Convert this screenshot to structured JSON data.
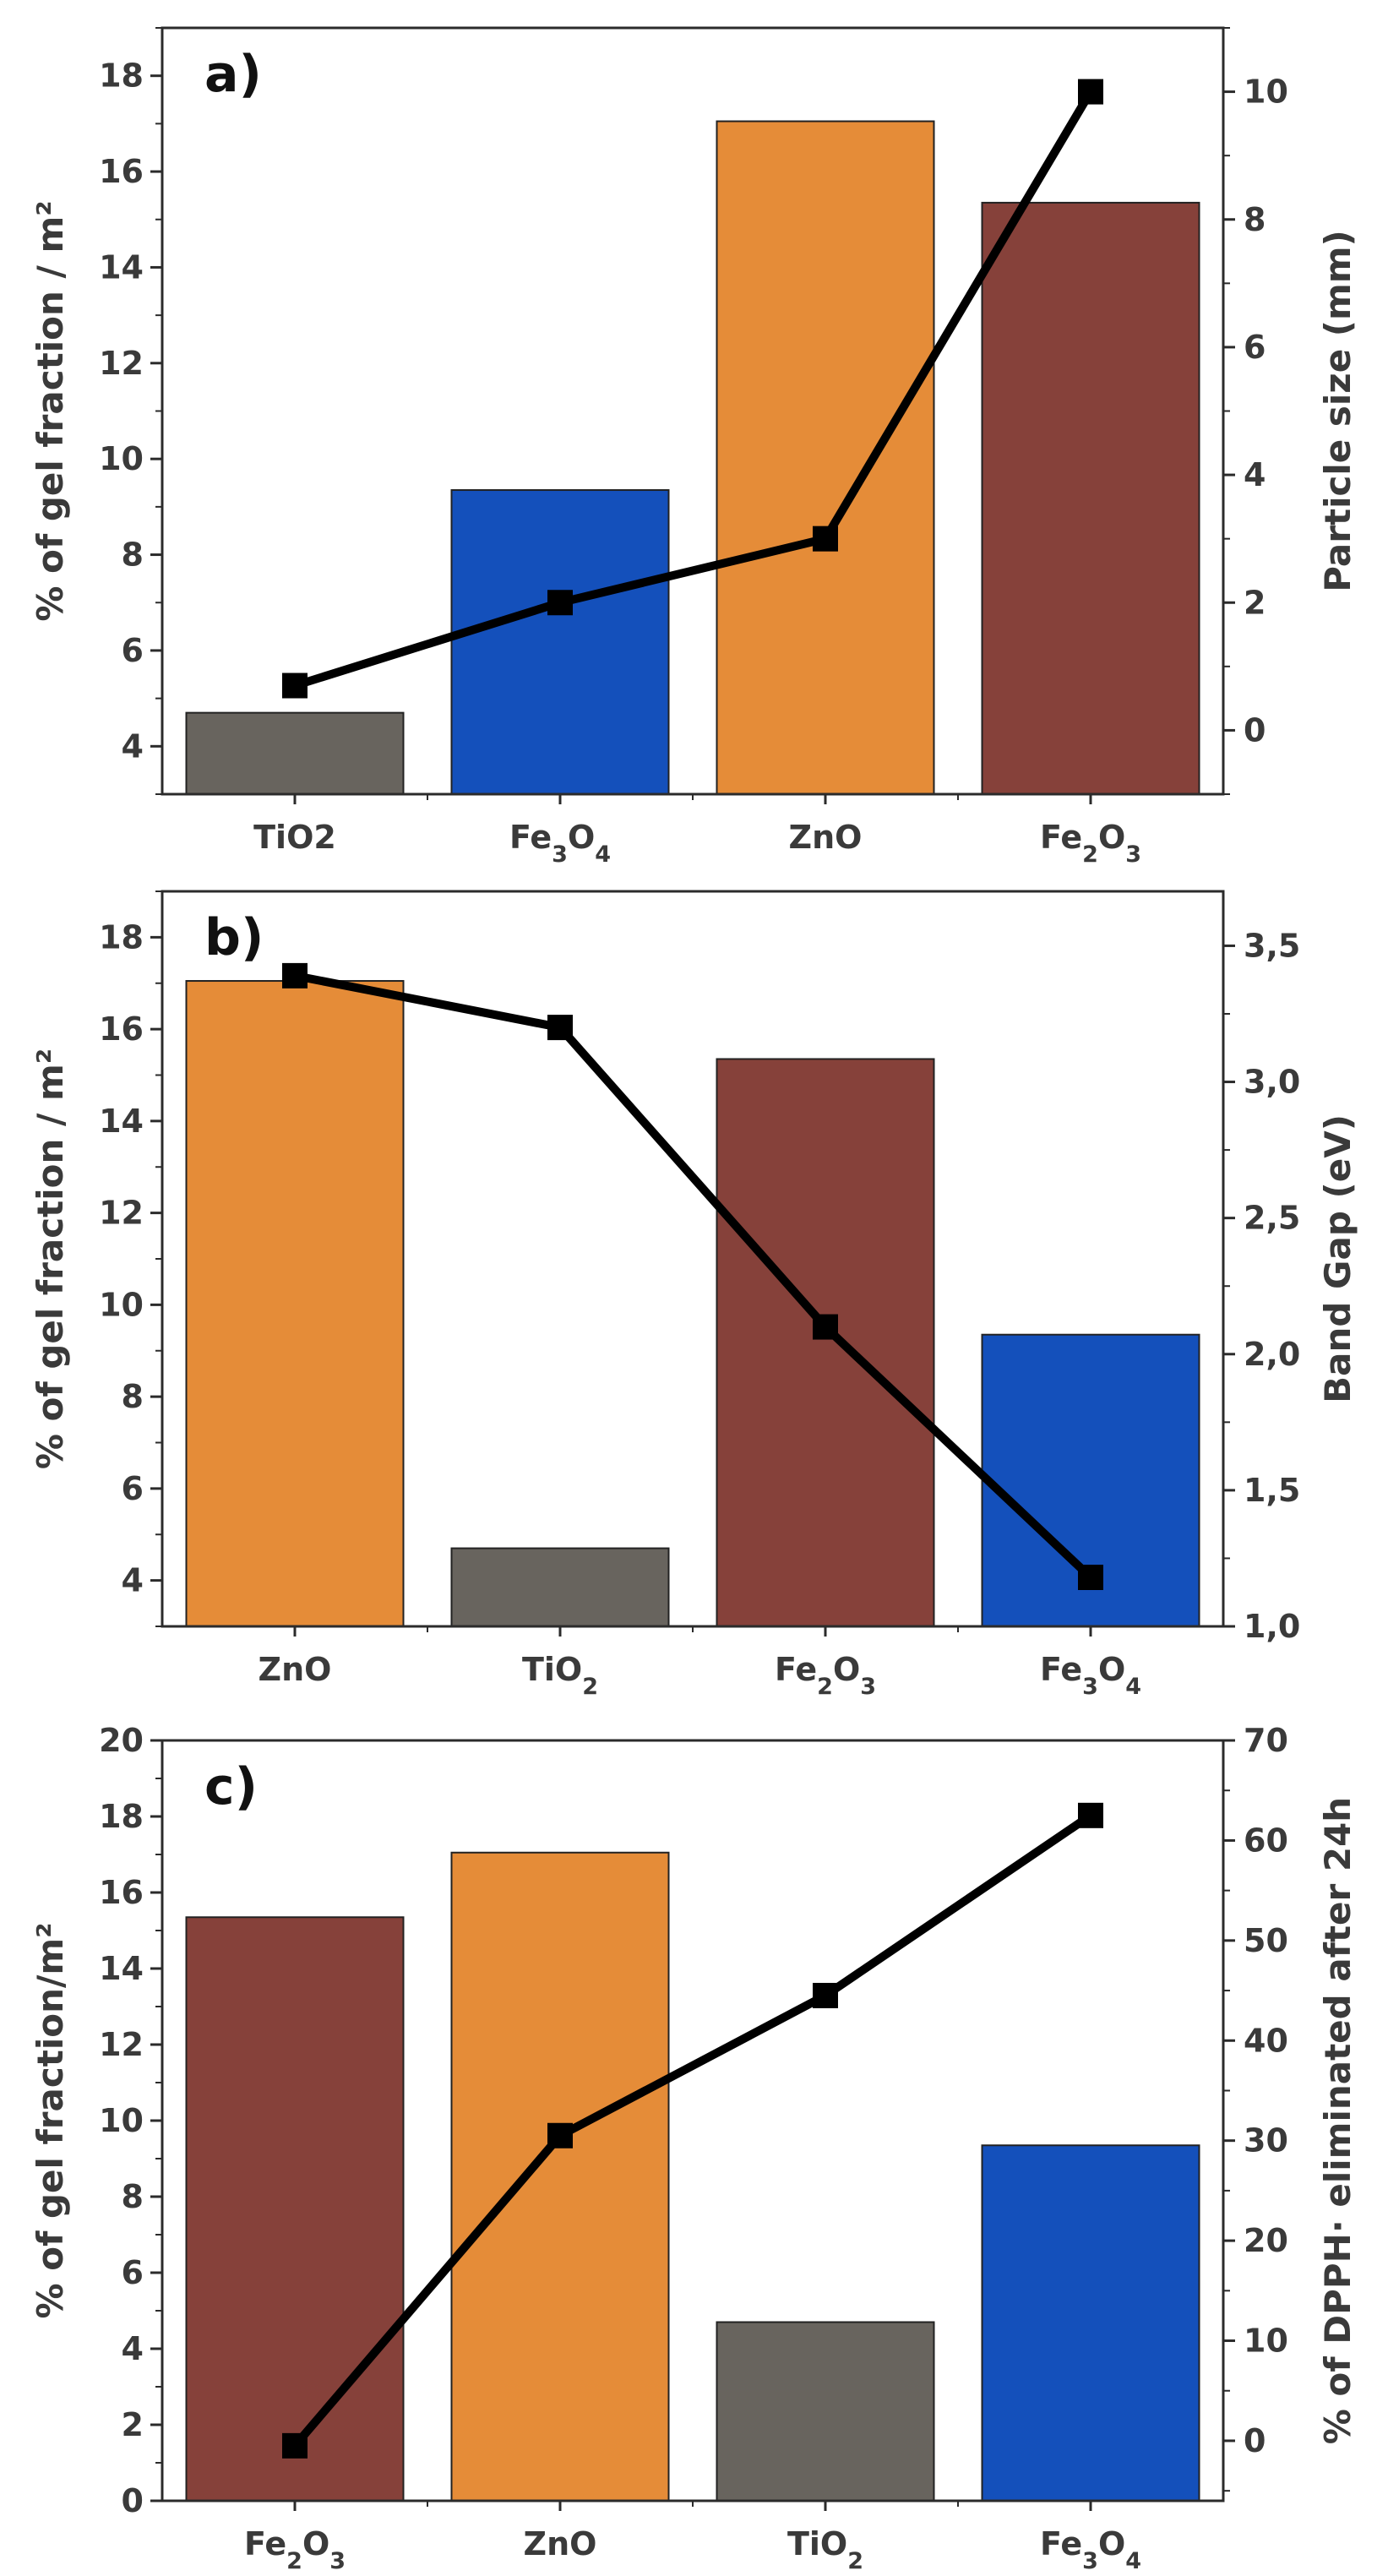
{
  "colors": {
    "TiO2": "#68645e",
    "Fe3O4": "#1450bb",
    "ZnO": "#e58c38",
    "Fe2O3": "#86413a",
    "line": "#000000",
    "axis": "#3a3a3a"
  },
  "chart_data": [
    {
      "type": "bar",
      "panel_label": "a)",
      "categories": [
        {
          "base": "TiO2",
          "sub": "",
          "tail": ""
        },
        {
          "base": "Fe",
          "sub": "3",
          "tail": "O",
          "sub2": "4"
        },
        {
          "base": "ZnO",
          "sub": "",
          "tail": ""
        },
        {
          "base": "Fe",
          "sub": "2",
          "tail": "O",
          "sub2": "3"
        }
      ],
      "bar_colors": [
        "TiO2",
        "Fe3O4",
        "ZnO",
        "Fe2O3"
      ],
      "values": [
        4.7,
        9.35,
        17.05,
        15.35
      ],
      "ylabel": "% of gel fraction / m²",
      "ylim": [
        3,
        19
      ],
      "yticks": [
        "4",
        "6",
        "8",
        "10",
        "12",
        "14",
        "16",
        "18"
      ],
      "ytick_values": [
        4,
        6,
        8,
        10,
        12,
        14,
        16,
        18
      ],
      "secondary": {
        "type": "line",
        "ylabel": "Particle size (mm)",
        "ylim": [
          -1,
          11
        ],
        "yticks": [
          "0",
          "2",
          "4",
          "6",
          "8",
          "10"
        ],
        "ytick_values": [
          0,
          2,
          4,
          6,
          8,
          10
        ],
        "values": [
          0.7,
          2.0,
          3.0,
          10.0
        ]
      }
    },
    {
      "type": "bar",
      "panel_label": "b)",
      "categories": [
        {
          "base": "ZnO",
          "sub": "",
          "tail": ""
        },
        {
          "base": "TiO",
          "sub": "2",
          "tail": ""
        },
        {
          "base": "Fe",
          "sub": "2",
          "tail": "O",
          "sub2": "3"
        },
        {
          "base": "Fe",
          "sub": "3",
          "tail": "O",
          "sub2": "4"
        }
      ],
      "bar_colors": [
        "ZnO",
        "TiO2",
        "Fe2O3",
        "Fe3O4"
      ],
      "values": [
        17.05,
        4.7,
        15.35,
        9.35
      ],
      "ylabel": "% of gel fraction / m²",
      "ylim": [
        3,
        19
      ],
      "yticks": [
        "4",
        "6",
        "8",
        "10",
        "12",
        "14",
        "16",
        "18"
      ],
      "ytick_values": [
        4,
        6,
        8,
        10,
        12,
        14,
        16,
        18
      ],
      "secondary": {
        "type": "line",
        "ylabel": "Band Gap (eV)",
        "ylim": [
          1.0,
          3.7
        ],
        "yticks": [
          "1,0",
          "1,5",
          "2,0",
          "2,5",
          "3,0",
          "3,5"
        ],
        "ytick_values": [
          1.0,
          1.5,
          2.0,
          2.5,
          3.0,
          3.5
        ],
        "values": [
          3.39,
          3.2,
          2.1,
          1.18
        ]
      }
    },
    {
      "type": "bar",
      "panel_label": "c)",
      "categories": [
        {
          "base": "Fe",
          "sub": "2",
          "tail": "O",
          "sub2": "3"
        },
        {
          "base": "ZnO",
          "sub": "",
          "tail": ""
        },
        {
          "base": "TiO",
          "sub": "2",
          "tail": ""
        },
        {
          "base": "Fe",
          "sub": "3",
          "tail": "O",
          "sub2": "4"
        }
      ],
      "bar_colors": [
        "Fe2O3",
        "ZnO",
        "TiO2",
        "Fe3O4"
      ],
      "values": [
        15.35,
        17.05,
        4.7,
        9.35
      ],
      "ylabel": "% of gel fraction/m²",
      "ylim": [
        0,
        20
      ],
      "yticks": [
        "0",
        "2",
        "4",
        "6",
        "8",
        "10",
        "12",
        "14",
        "16",
        "18",
        "20"
      ],
      "ytick_values": [
        0,
        2,
        4,
        6,
        8,
        10,
        12,
        14,
        16,
        18,
        20
      ],
      "secondary": {
        "type": "line",
        "ylabel": "% of DPPH· eliminated after 24h",
        "ylim": [
          -6,
          70
        ],
        "yticks": [
          "0",
          "10",
          "20",
          "30",
          "40",
          "50",
          "60",
          "70"
        ],
        "ytick_values": [
          0,
          10,
          20,
          30,
          40,
          50,
          60,
          70
        ],
        "values": [
          -0.5,
          30.5,
          44.5,
          62.5
        ]
      }
    }
  ]
}
